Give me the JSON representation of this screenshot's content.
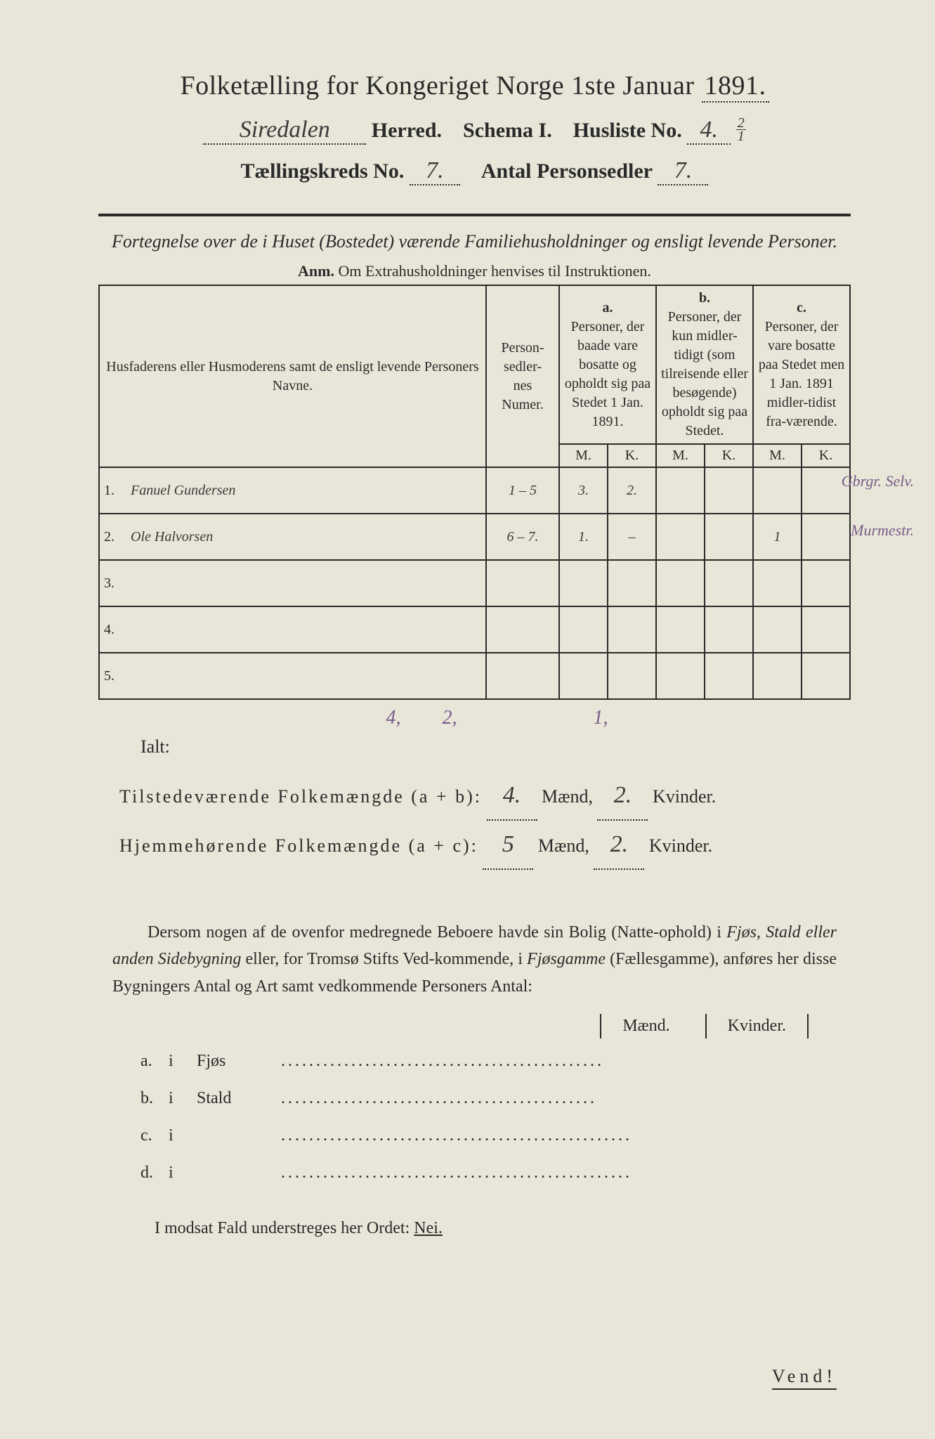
{
  "header": {
    "title_prefix": "Folketælling for Kongeriget Norge 1ste Januar",
    "year": "1891.",
    "herred_name": "Siredalen",
    "herred_label": "Herred.",
    "schema_label": "Schema I.",
    "husliste_label": "Husliste No.",
    "husliste_no": "4.",
    "husliste_frac_n": "2",
    "husliste_frac_d": "1",
    "kreds_label": "Tællingskreds No.",
    "kreds_no": "7.",
    "antal_label": "Antal Personsedler",
    "antal_no": "7."
  },
  "intro": {
    "fortegnelse": "Fortegnelse over de i Huset (Bostedet) værende Familiehusholdninger og ensligt levende Personer.",
    "anm_label": "Anm.",
    "anm_text": "Om Extrahusholdninger henvises til Instruktionen."
  },
  "table": {
    "head_name": "Husfaderens eller Husmoderens samt de ensligt levende Personers Navne.",
    "head_num": "Person-\nsedler-\nnes\nNumer.",
    "col_a": "a.",
    "col_a_text": "Personer, der baade vare bosatte og opholdt sig paa Stedet 1 Jan. 1891.",
    "col_b": "b.",
    "col_b_text": "Personer, der kun midler-tidigt (som tilreisende eller besøgende) opholdt sig paa Stedet.",
    "col_c": "c.",
    "col_c_text": "Personer, der vare bosatte paa Stedet men 1 Jan. 1891 midler-tidist fra-værende.",
    "M": "M.",
    "K": "K.",
    "rows": [
      {
        "n": "1.",
        "name": "Fanuel Gundersen",
        "num": "1 – 5",
        "aM": "3.",
        "aK": "2.",
        "bM": "",
        "bK": "",
        "cM": "",
        "cK": "",
        "note": "Gbrgr. Selv."
      },
      {
        "n": "2.",
        "name": "Ole Halvorsen",
        "num": "6 – 7.",
        "aM": "1.",
        "aK": "–",
        "bM": "",
        "bK": "",
        "cM": "1",
        "cK": "",
        "note": "Murmestr."
      },
      {
        "n": "3.",
        "name": "",
        "num": "",
        "aM": "",
        "aK": "",
        "bM": "",
        "bK": "",
        "cM": "",
        "cK": "",
        "note": ""
      },
      {
        "n": "4.",
        "name": "",
        "num": "",
        "aM": "",
        "aK": "",
        "bM": "",
        "bK": "",
        "cM": "",
        "cK": "",
        "note": ""
      },
      {
        "n": "5.",
        "name": "",
        "num": "",
        "aM": "",
        "aK": "",
        "bM": "",
        "bK": "",
        "cM": "",
        "cK": "",
        "note": ""
      }
    ],
    "ialt": "Ialt:",
    "totals": {
      "aM": "4,",
      "aK": "2,",
      "bM": "",
      "bK": "",
      "cM": "1,",
      "cK": ""
    }
  },
  "summary": {
    "line1_label": "Tilstedeværende Folkemængde (a + b):",
    "line1_m": "4.",
    "line1_k": "2.",
    "line2_label": "Hjemmehørende Folkemængde (a + c):",
    "line2_m": "5",
    "line2_k": "2.",
    "maend": "Mænd,",
    "kvinder": "Kvinder."
  },
  "dersom": {
    "text1": "Dersom nogen af de ovenfor medregnede Beboere havde sin Bolig (Natte-ophold) i ",
    "em1": "Fjøs, Stald eller anden Sidebygning",
    "text2": " eller, for Tromsø Stifts Ved-kommende, i ",
    "em2": "Fjøsgamme",
    "text3": " (Fællesgamme), anføres her disse Bygningers Antal og Art samt vedkommende Personers Antal:"
  },
  "sidebyg": {
    "maend": "Mænd.",
    "kvinder": "Kvinder.",
    "rows": [
      {
        "k": "a.",
        "i": "i",
        "label": "Fjøs"
      },
      {
        "k": "b.",
        "i": "i",
        "label": "Stald"
      },
      {
        "k": "c.",
        "i": "i",
        "label": ""
      },
      {
        "k": "d.",
        "i": "i",
        "label": ""
      }
    ]
  },
  "footer": {
    "modsat": "I modsat Fald understreges her Ordet: ",
    "nei": "Nei.",
    "vend": "Vend!"
  }
}
